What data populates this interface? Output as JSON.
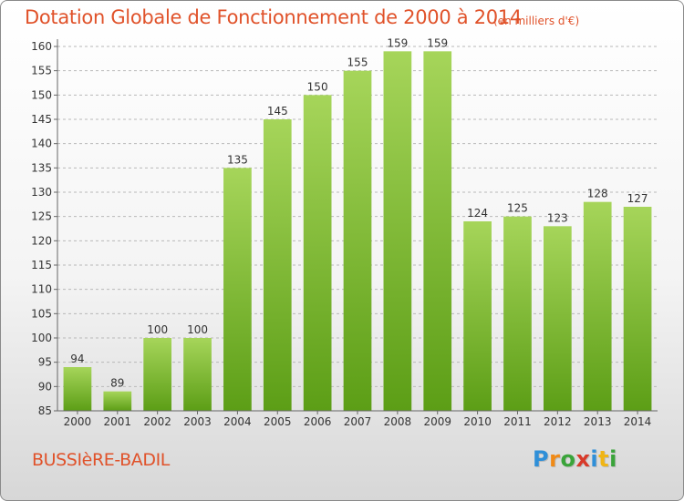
{
  "title": "Dotation Globale de Fonctionnement de 2000 à 2014",
  "unit_note": "(en milliers d'€)",
  "commune": "BUSSIèRE-BADIL",
  "logo": {
    "letters": [
      "P",
      "r",
      "o",
      "x",
      "i",
      "t",
      "i"
    ],
    "colors": [
      "#2f8fd8",
      "#f08a16",
      "#3aa43a",
      "#d83a2a",
      "#2f8fd8",
      "#f0b514",
      "#3aa43a"
    ]
  },
  "colors": {
    "accent": "#e0522a",
    "bar_top": "#a6d55a",
    "bar_bottom": "#5c9e16",
    "grid": "#b8b8b8"
  },
  "chart_data": {
    "type": "bar",
    "title": "Dotation Globale de Fonctionnement de 2000 à 2014",
    "subtitle": "(en milliers d'€)",
    "categories": [
      "2000",
      "2001",
      "2002",
      "2003",
      "2004",
      "2005",
      "2006",
      "2007",
      "2008",
      "2009",
      "2010",
      "2011",
      "2012",
      "2013",
      "2014"
    ],
    "values": [
      94,
      89,
      100,
      100,
      135,
      145,
      150,
      155,
      159,
      159,
      124,
      125,
      123,
      128,
      127
    ],
    "ylim": [
      85,
      160
    ],
    "ytick_step": 5,
    "grid": true,
    "grid_style": "dashed horizontal",
    "legend": "none"
  }
}
